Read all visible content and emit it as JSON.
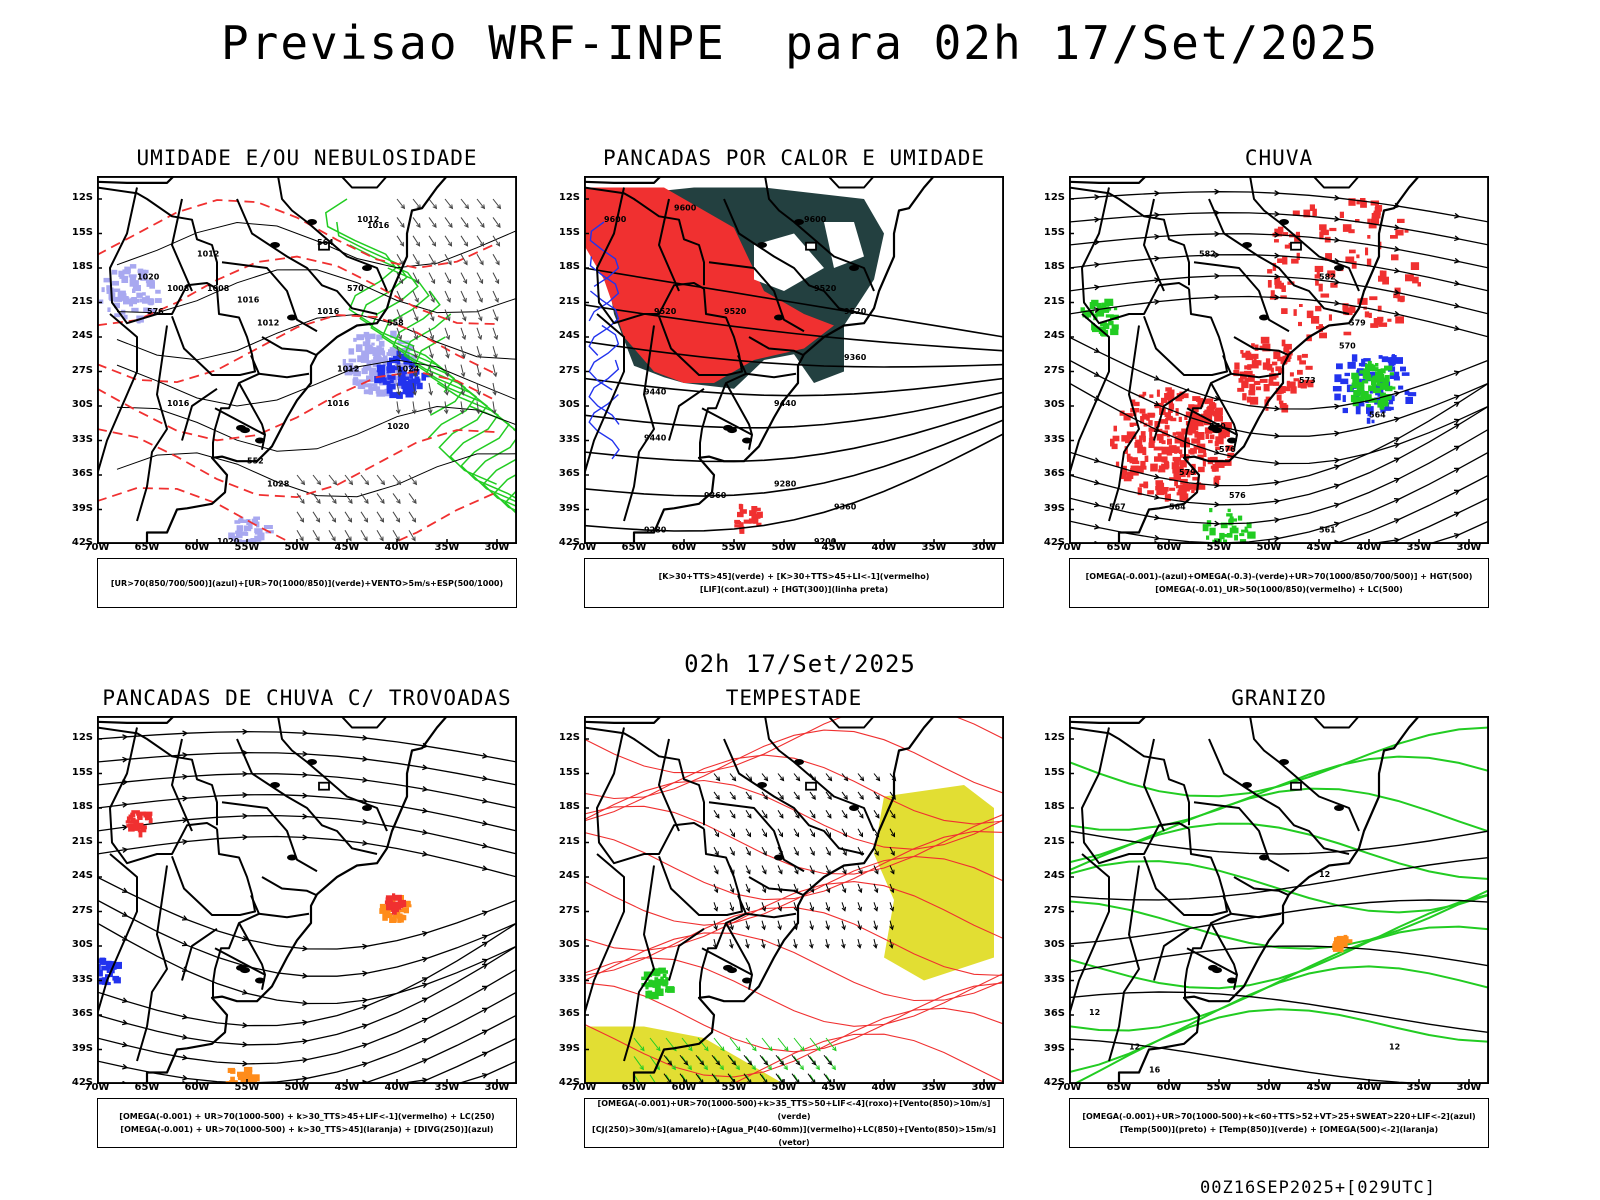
{
  "title": "Previsao WRF-INPE  para 02h 17/Set/2025",
  "mid_title": "02h 17/Set/2025",
  "footer": "00Z16SEP2025+[029UTC]",
  "axes": {
    "lat_labels": [
      "12S",
      "15S",
      "18S",
      "21S",
      "24S",
      "27S",
      "30S",
      "33S",
      "36S",
      "39S",
      "42S"
    ],
    "lon_labels": [
      "70W",
      "65W",
      "60W",
      "55W",
      "50W",
      "45W",
      "40W",
      "35W",
      "30W"
    ]
  },
  "panels": [
    {
      "title": "UMIDADE E/OU NEBULOSIDADE",
      "legend": [
        "[UR>70(850/700/500)](azul)+[UR>70(1000/850)](verde)+VENTO>5m/s+ESP(500/1000)"
      ],
      "contour_labels": [
        "1012",
        "1016",
        "1016",
        "1008",
        "1008",
        "1012",
        "1020",
        "1016",
        "1024",
        "1012",
        "1016",
        "1020",
        "1028",
        "1020",
        "1016",
        "1012",
        "570",
        "564",
        "558",
        "552",
        "576"
      ]
    },
    {
      "title": "PANCADAS POR CALOR E UMIDADE",
      "legend": [
        "[K>30+TTS>45](verde) + [K>30+TTS>45+LI<-1](vermelho)",
        "[LIF](cont.azul) + [HGT(300)](linha preta)"
      ],
      "contour_labels": [
        "9600",
        "9600",
        "9600",
        "9520",
        "9520",
        "9520",
        "9520",
        "9440",
        "9440",
        "9440",
        "9360",
        "9360",
        "9280",
        "9280",
        "9200",
        "9360"
      ]
    },
    {
      "title": "CHUVA",
      "legend": [
        "[OMEGA(-0.001)-(azul)+OMEGA(-0.3)-(verde)+UR>70(1000/850/700/500)] + HGT(500)",
        "[OMEGA(-0.01)_UR>50(1000/850)(vermelho) + LC(500)"
      ],
      "contour_labels": [
        "582",
        "582",
        "579",
        "573",
        "570",
        "576",
        "579",
        "576",
        "567",
        "564",
        "561",
        "564",
        "570"
      ]
    },
    {
      "title": "PANCADAS DE CHUVA C/ TROVOADAS",
      "legend": [
        "[OMEGA(-0.001) + UR>70(1000-500) + k>30_TTS>45+LIF<-1](vermelho) + LC(250)",
        "[OMEGA(-0.001) + UR>70(1000-500) + k>30_TTS>45](laranja) + [DIVG(250)](azul)"
      ],
      "contour_labels": []
    },
    {
      "title": "TEMPESTADE",
      "legend": [
        "[OMEGA(-0.001)+UR>70(1000-500)+k>35_TTS>50+LIF<-4](roxo)+[Vento(850)>10m/s](verde)",
        "[CJ(250)>30m/s](amarelo)+[Agua_P(40-60mm)](vermelho)+LC(850)+[Vento(850)>15m/s](vetor)"
      ],
      "contour_labels": []
    },
    {
      "title": "GRANIZO",
      "legend": [
        "[OMEGA(-0.001)+UR>70(1000-500)+k<60+TTS>52+VT>25+SWEAT>220+LIF<-2](azul)",
        "[Temp(500)](preto) + [Temp(850)](verde) + [OMEGA(500)<-2](laranja)"
      ],
      "contour_labels": [
        "12",
        "12",
        "12",
        "12",
        "16"
      ]
    }
  ],
  "colors": {
    "red": "#f03030",
    "green": "#22cc22",
    "blue": "#2233ee",
    "lavender": "#a8a8f0",
    "dark_teal": "#234040",
    "yellow": "#e2de33",
    "orange": "#ff8c1a"
  }
}
